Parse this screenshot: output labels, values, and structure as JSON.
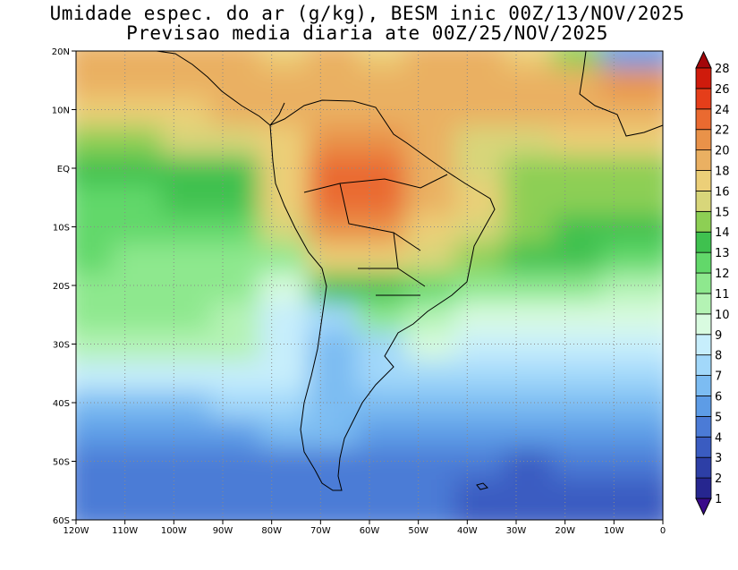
{
  "title": {
    "line1": "Umidade espec. do ar (g/kg), BESM inic 00Z/13/NOV/2025",
    "line2": "Previsao media diaria ate 00Z/25/NOV/2025"
  },
  "map": {
    "lon_range": [
      -120,
      0
    ],
    "lat_range": [
      -60,
      20
    ],
    "lat_labels": [
      "20N",
      "10N",
      "EQ",
      "10S",
      "20S",
      "30S",
      "40S",
      "50S",
      "60S"
    ],
    "lon_labels": [
      "120W",
      "110W",
      "100W",
      "90W",
      "80W",
      "70W",
      "60W",
      "50W",
      "40W",
      "30W",
      "20W",
      "10W",
      "0"
    ],
    "grid": "dotted"
  },
  "colorbar": {
    "labels": [
      "1",
      "2",
      "3",
      "4",
      "5",
      "6",
      "7",
      "8",
      "9",
      "10",
      "11",
      "12",
      "13",
      "14",
      "15",
      "16",
      "18",
      "20",
      "22",
      "24",
      "26",
      "28"
    ],
    "colors": [
      "#3a0a8a",
      "#26268f",
      "#2d3fa6",
      "#3a5cc1",
      "#4b7bd6",
      "#5d9ce6",
      "#7cbcf2",
      "#a2d8fa",
      "#c7eefc",
      "#d9fbe0",
      "#b4f3b4",
      "#8ee88e",
      "#62d86a",
      "#3fc14f",
      "#8dcf54",
      "#d8d67a",
      "#eccf78",
      "#eab062",
      "#e99249",
      "#ea6a30",
      "#e53e1a",
      "#cf1b0c",
      "#a3060a"
    ]
  },
  "chart_data": {
    "type": "heatmap",
    "variable": "Umidade espec. do ar (g/kg)",
    "x_axis": "longitude",
    "y_axis": "latitude",
    "xlim": [
      -120,
      0
    ],
    "ylim": [
      -60,
      20
    ],
    "levels": [
      1,
      2,
      3,
      4,
      5,
      6,
      7,
      8,
      9,
      10,
      11,
      12,
      13,
      14,
      15,
      16,
      18,
      20,
      22,
      24,
      26,
      28
    ],
    "x": [
      -115,
      -105,
      -95,
      -85,
      -75,
      -65,
      -55,
      -45,
      -35,
      -25,
      -15,
      -5
    ],
    "y": [
      17.5,
      12.5,
      7.5,
      2.5,
      -2.5,
      -7.5,
      -12.5,
      -17.5,
      -22.5,
      -27.5,
      -32.5,
      -37.5,
      -42.5,
      -47.5,
      -52.5,
      -57.5
    ],
    "z": [
      [
        18,
        18,
        18,
        18,
        17,
        18,
        17,
        18,
        18,
        16,
        14,
        5
      ],
      [
        18,
        18,
        18,
        18,
        18,
        19,
        19,
        18,
        18,
        18,
        18,
        20
      ],
      [
        16,
        16,
        17,
        18,
        18,
        18,
        19,
        18,
        18,
        18,
        18,
        18
      ],
      [
        14,
        14,
        15,
        15,
        17,
        21,
        21,
        18,
        15,
        15,
        16,
        16
      ],
      [
        13,
        13,
        13,
        13,
        17,
        22,
        22,
        19,
        15,
        14,
        14,
        14
      ],
      [
        12,
        12,
        13,
        13,
        17,
        23,
        22,
        19,
        16,
        14,
        14,
        14
      ],
      [
        12,
        12,
        12,
        12,
        15,
        20,
        21,
        17,
        15,
        14,
        13,
        13
      ],
      [
        12,
        11,
        11,
        11,
        11,
        16,
        16,
        15,
        14,
        13,
        13,
        12
      ],
      [
        11,
        11,
        11,
        11,
        9,
        13,
        13,
        12,
        11,
        11,
        11,
        10
      ],
      [
        11,
        11,
        11,
        10,
        8,
        7,
        11,
        10,
        9,
        9,
        9,
        9
      ],
      [
        10,
        10,
        10,
        10,
        8,
        6,
        7,
        9,
        8,
        8,
        8,
        8
      ],
      [
        8,
        8,
        8,
        8,
        8,
        6,
        7,
        7,
        7,
        7,
        7,
        7
      ],
      [
        6,
        6,
        6,
        7,
        7,
        6,
        6,
        6,
        6,
        6,
        6,
        6
      ],
      [
        5,
        5,
        5,
        5,
        6,
        6,
        5,
        5,
        5,
        5,
        5,
        5
      ],
      [
        4,
        4,
        4,
        4,
        4,
        4,
        4,
        4,
        4,
        3,
        4,
        4
      ],
      [
        4,
        4,
        4,
        4,
        4,
        4,
        4,
        4,
        3,
        3,
        3,
        3
      ]
    ]
  }
}
